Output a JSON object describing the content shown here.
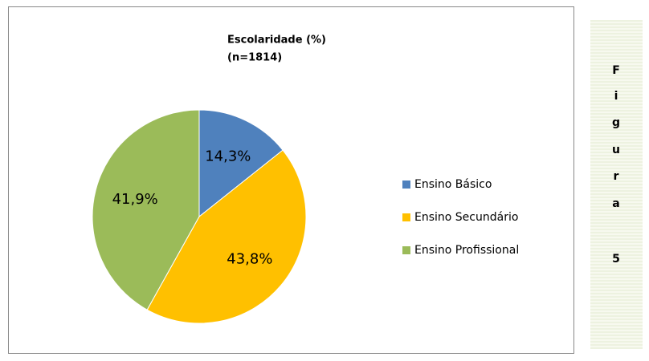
{
  "chart_data": {
    "type": "pie",
    "title": "Escolaridade (%)",
    "subtitle": "(n=1814)",
    "categories": [
      "Ensino Básico",
      "Ensino Secundário",
      "Ensino Profissional"
    ],
    "values": [
      14.3,
      43.8,
      41.9
    ],
    "value_labels": [
      "14,3%",
      "43,8%",
      "41,9%"
    ],
    "colors": [
      "#4f81bd",
      "#ffc000",
      "#9bbb59"
    ],
    "legend": "right"
  },
  "side_label": [
    "F",
    "i",
    "g",
    "u",
    "r",
    "a",
    "5"
  ]
}
